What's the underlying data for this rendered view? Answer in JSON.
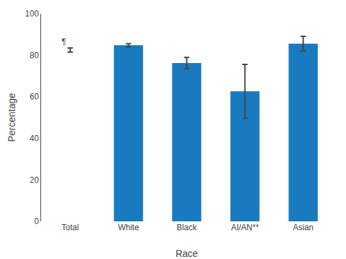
{
  "chart_data": {
    "type": "bar",
    "categories": [
      "Total",
      "White",
      "Black",
      "AI/AN**",
      "Asian"
    ],
    "values": [
      82.5,
      84.8,
      76.2,
      62.6,
      85.6
    ],
    "errors": [
      1.0,
      0.8,
      2.8,
      13.0,
      3.5
    ],
    "colors": [
      "white",
      "#1a7abf",
      "#1a7abf",
      "#1a7abf",
      "#1a7abf"
    ],
    "xlabel": "Race",
    "ylabel": "Percentage",
    "ylim": [
      0,
      100
    ],
    "yticks": [
      0,
      20,
      40,
      60,
      80,
      100
    ],
    "annotation": "¶",
    "grid": false
  }
}
